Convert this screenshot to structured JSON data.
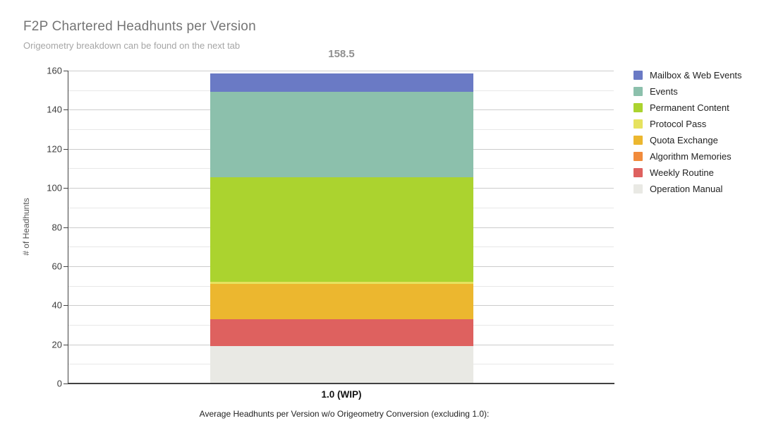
{
  "header": {
    "title": "F2P Chartered Headhunts per Version",
    "subtitle": "Origeometry breakdown can be found on the next tab"
  },
  "chart_data": {
    "type": "bar",
    "stacked": true,
    "title": "F2P Chartered Headhunts per Version",
    "categories": [
      "1.0 (WIP)"
    ],
    "total_label": "158.5",
    "total_value": 158.5,
    "xlabel": "",
    "ylabel": "# of Headhunts",
    "ylim": [
      0,
      160
    ],
    "y_major_step": 20,
    "y_minor_step": 10,
    "grid": true,
    "legend_position": "right",
    "series": [
      {
        "name": "Operation Manual",
        "values": [
          19
        ],
        "color": "#e9e9e4"
      },
      {
        "name": "Weekly Routine",
        "values": [
          14
        ],
        "color": "#de615f"
      },
      {
        "name": "Algorithm Memories",
        "values": [
          0
        ],
        "color": "#f18b3c"
      },
      {
        "name": "Quota Exchange",
        "values": [
          18
        ],
        "color": "#ecb72f"
      },
      {
        "name": "Protocol Pass",
        "values": [
          1
        ],
        "color": "#e6e25f"
      },
      {
        "name": "Permanent Content",
        "values": [
          53.5
        ],
        "color": "#abd32f"
      },
      {
        "name": "Events",
        "values": [
          43.5
        ],
        "color": "#8cc0ac"
      },
      {
        "name": "Mailbox & Web Events",
        "values": [
          9.5
        ],
        "color": "#6a7ac5"
      }
    ]
  },
  "footer": {
    "note": "Average Headhunts per Version w/o Origeometry Conversion (excluding 1.0):"
  }
}
